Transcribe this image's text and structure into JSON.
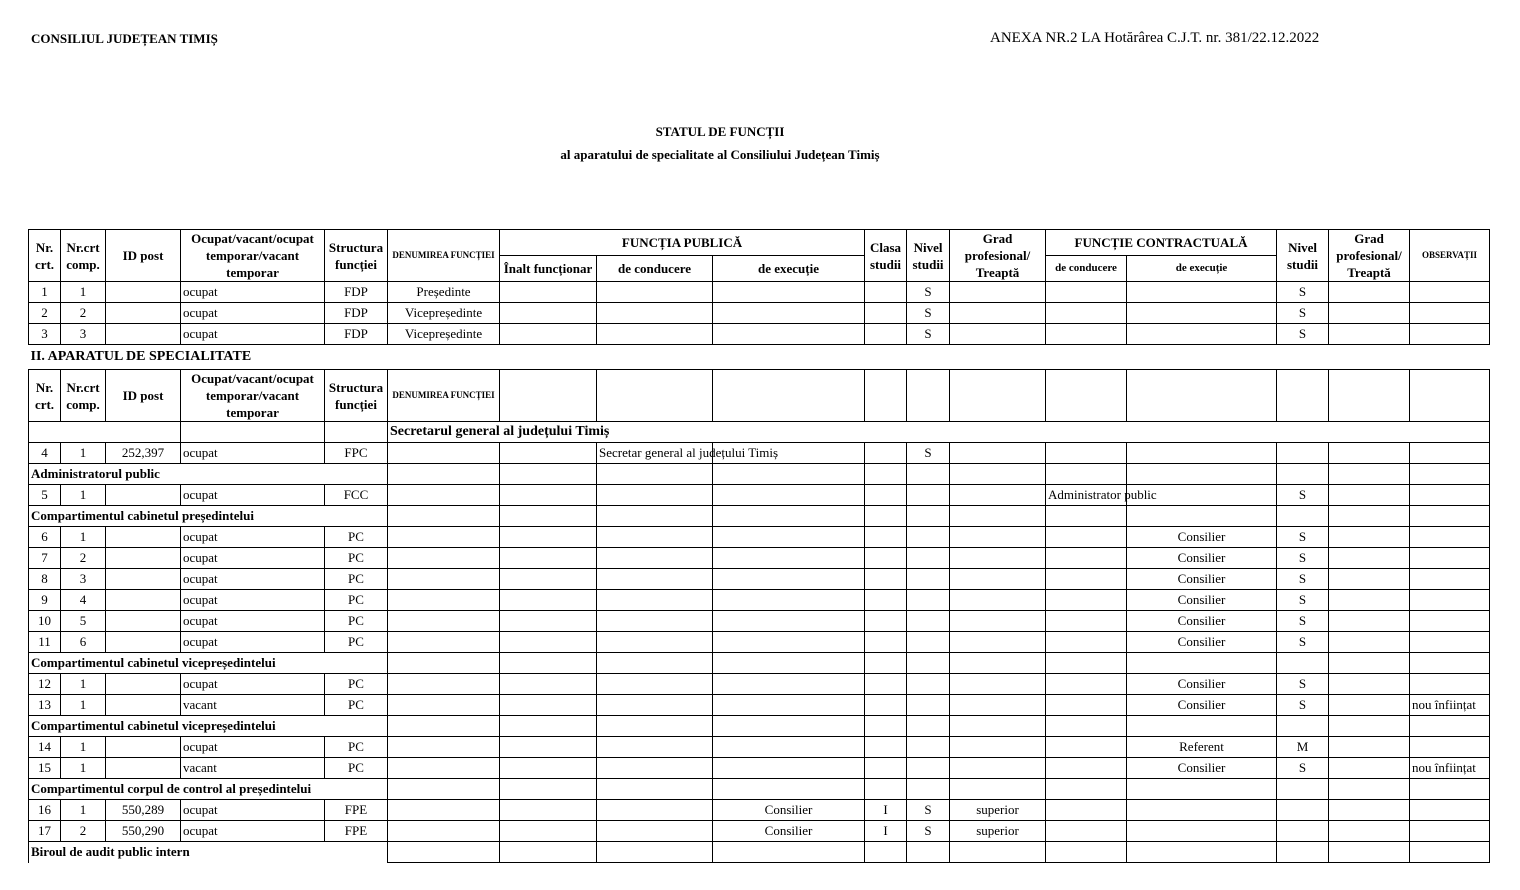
{
  "header": {
    "left": "CONSILIUL JUDEȚEAN TIMIȘ",
    "right": "ANEXA NR.2 LA Hotărârea C.J.T. nr. 381/22.12.2022"
  },
  "title": {
    "line1": "STATUL DE FUNCȚII",
    "line2": "al aparatului de specialitate al Consiliului Județean Timiș"
  },
  "table": {
    "columns": [
      "Nr. crt.",
      "Nr.crt comp.",
      "ID post",
      "Ocupat/vacant/ocupat temporar/vacant temporar",
      "Structura funcției",
      "DENUMIREA FUNCȚIEI",
      "Înalt funcționar",
      "de conducere",
      "de execuție",
      "Clasa studii",
      "Nivel studii",
      "Grad profesional/ Treaptă",
      "de conducere",
      "de execuție",
      "Nivel studii",
      "Grad profesional/ Treaptă",
      "OBSERVAȚII"
    ],
    "groups": [
      "FUNCȚIA PUBLICĂ",
      "FUNCȚIE CONTRACTUALĂ"
    ],
    "rows": [
      [
        "1",
        "1",
        null,
        "ocupat",
        "FDP",
        "Președinte",
        null,
        null,
        null,
        null,
        "S",
        null,
        null,
        null,
        "S",
        null,
        null
      ],
      [
        "2",
        "2",
        null,
        "ocupat",
        "FDP",
        "Vicepreședinte",
        null,
        null,
        null,
        null,
        "S",
        null,
        null,
        null,
        "S",
        null,
        null
      ],
      [
        "3",
        "3",
        null,
        "ocupat",
        "FDP",
        "Vicepreședinte",
        null,
        null,
        null,
        null,
        "S",
        null,
        null,
        null,
        "S",
        null,
        null
      ],
      {
        "title": "II. APARATUL DE SPECIALITATE"
      },
      [
        "Nr. crt.",
        "Nr.crt comp.",
        "ID post",
        "Ocupat/vacant/ocupat temporar/vacant temporar",
        "Structura funcției",
        "DENUMIREA FUNCȚIEI",
        null,
        null,
        null,
        null,
        null,
        null,
        null,
        null,
        null,
        null,
        null
      ],
      {
        "heading": "Secretarul general al județului Timiș"
      },
      [
        "4",
        "1",
        "252,397",
        "ocupat",
        "FPC",
        null,
        null,
        "Secretar general al județului Timiș",
        null,
        null,
        "S",
        null,
        null,
        null,
        null,
        null,
        null
      ],
      {
        "section": "Administratorul public"
      },
      [
        "5",
        "1",
        null,
        "ocupat",
        "FCC",
        null,
        null,
        null,
        null,
        null,
        null,
        null,
        "Administrator public",
        null,
        "S",
        null,
        null
      ],
      {
        "section": "Compartimentul cabinetul președintelui"
      },
      [
        "6",
        "1",
        null,
        "ocupat",
        "PC",
        null,
        null,
        null,
        null,
        null,
        null,
        null,
        null,
        "Consilier",
        "S",
        null,
        null
      ],
      [
        "7",
        "2",
        null,
        "ocupat",
        "PC",
        null,
        null,
        null,
        null,
        null,
        null,
        null,
        null,
        "Consilier",
        "S",
        null,
        null
      ],
      [
        "8",
        "3",
        null,
        "ocupat",
        "PC",
        null,
        null,
        null,
        null,
        null,
        null,
        null,
        null,
        "Consilier",
        "S",
        null,
        null
      ],
      [
        "9",
        "4",
        null,
        "ocupat",
        "PC",
        null,
        null,
        null,
        null,
        null,
        null,
        null,
        null,
        "Consilier",
        "S",
        null,
        null
      ],
      [
        "10",
        "5",
        null,
        "ocupat",
        "PC",
        null,
        null,
        null,
        null,
        null,
        null,
        null,
        null,
        "Consilier",
        "S",
        null,
        null
      ],
      [
        "11",
        "6",
        null,
        "ocupat",
        "PC",
        null,
        null,
        null,
        null,
        null,
        null,
        null,
        null,
        "Consilier",
        "S",
        null,
        null
      ],
      {
        "section": "Compartimentul cabinetul vicepreședintelui"
      },
      [
        "12",
        "1",
        null,
        "ocupat",
        "PC",
        null,
        null,
        null,
        null,
        null,
        null,
        null,
        null,
        "Consilier",
        "S",
        null,
        null
      ],
      [
        "13",
        "1",
        null,
        "vacant",
        "PC",
        null,
        null,
        null,
        null,
        null,
        null,
        null,
        null,
        "Consilier",
        "S",
        null,
        "nou înființat"
      ],
      {
        "section": "Compartimentul cabinetul vicepreședintelui"
      },
      [
        "14",
        "1",
        null,
        "ocupat",
        "PC",
        null,
        null,
        null,
        null,
        null,
        null,
        null,
        null,
        "Referent",
        "M",
        null,
        null
      ],
      [
        "15",
        "1",
        null,
        "vacant",
        "PC",
        null,
        null,
        null,
        null,
        null,
        null,
        null,
        null,
        "Consilier",
        "S",
        null,
        "nou înființat"
      ],
      {
        "section": "Compartimentul corpul de control al președintelui"
      },
      [
        "16",
        "1",
        "550,289",
        "ocupat",
        "FPE",
        null,
        null,
        null,
        "Consilier",
        "I",
        "S",
        "superior",
        null,
        null,
        null,
        null,
        null
      ],
      [
        "17",
        "2",
        "550,290",
        "ocupat",
        "FPE",
        null,
        null,
        null,
        "Consilier",
        "I",
        "S",
        "superior",
        null,
        null,
        null,
        null,
        null
      ],
      {
        "section": "Biroul de audit public intern"
      }
    ]
  }
}
